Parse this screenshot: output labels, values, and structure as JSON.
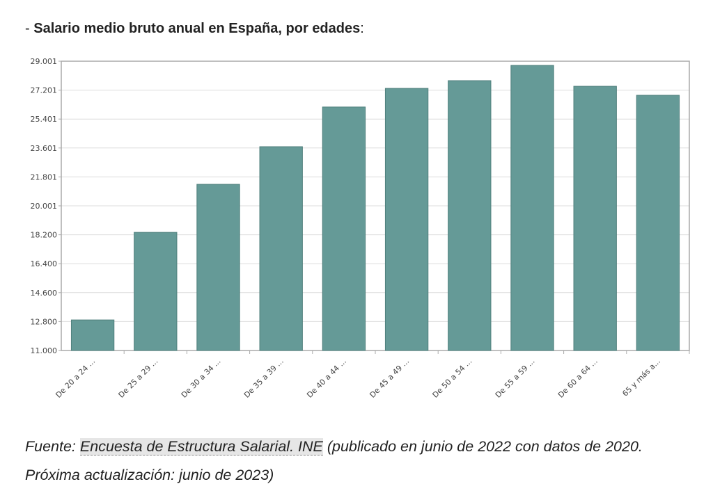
{
  "heading": {
    "prefix": "-",
    "title": "Salario medio bruto anual en España, por edades",
    "suffix": ":"
  },
  "chart_data": {
    "type": "bar",
    "categories": [
      "De 20 a 24 ...",
      "De 25 a 29 ...",
      "De 30 a 34 ...",
      "De 35 a 39 ...",
      "De 40 a 44 ...",
      "De 45 a 49 ...",
      "De 50 a 54 ...",
      "De 55 a 59 ...",
      "De 60 a 64 ...",
      "65 y más a..."
    ],
    "values": [
      12900,
      18350,
      21340,
      23680,
      26150,
      27310,
      27790,
      28740,
      27440,
      26880
    ],
    "color": "#659a97",
    "ylim": [
      11000,
      29001
    ],
    "yticks": [
      {
        "value": 11000,
        "label": "11.000"
      },
      {
        "value": 12800,
        "label": "12.800"
      },
      {
        "value": 14600,
        "label": "14.600"
      },
      {
        "value": 16400,
        "label": "16.400"
      },
      {
        "value": 18200,
        "label": "18.200"
      },
      {
        "value": 20001,
        "label": "20.001"
      },
      {
        "value": 21801,
        "label": "21.801"
      },
      {
        "value": 23601,
        "label": "23.601"
      },
      {
        "value": 25401,
        "label": "25.401"
      },
      {
        "value": 27201,
        "label": "27.201"
      },
      {
        "value": 29001,
        "label": "29.001"
      }
    ],
    "grid": true
  },
  "source": {
    "label": "Fuente:",
    "link": "Encuesta de Estructura Salarial. INE",
    "note": "(publicado en junio de 2022 con datos de 2020. Próxima actualización: junio de 2023)"
  }
}
